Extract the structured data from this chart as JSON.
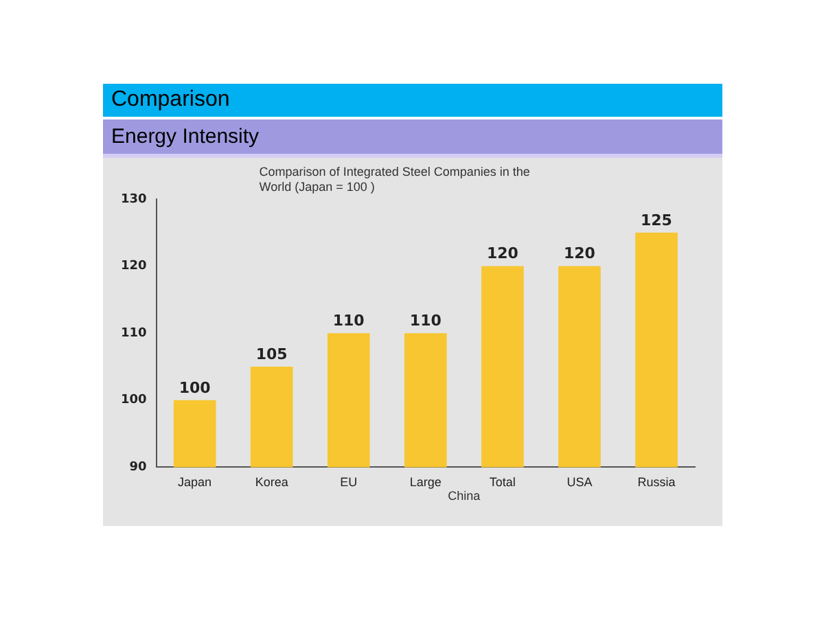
{
  "chart_data": {
    "type": "bar",
    "title": "Comparison",
    "subtitle": "Energy Intensity",
    "categories": [
      "Japan",
      "Korea",
      "EU",
      "Large",
      "Total",
      "USA",
      "Russia"
    ],
    "values": [
      100,
      105,
      110,
      110,
      120,
      120,
      125
    ],
    "color": "#f7c631",
    "ylim": [
      90,
      130
    ],
    "yticks": [
      90,
      100,
      110,
      120,
      130
    ],
    "grid": false,
    "legend": false,
    "data_labels": true,
    "annotations": [
      "Comparison of Integrated Steel Companies in the World (Japan = 100 )",
      "China"
    ]
  }
}
